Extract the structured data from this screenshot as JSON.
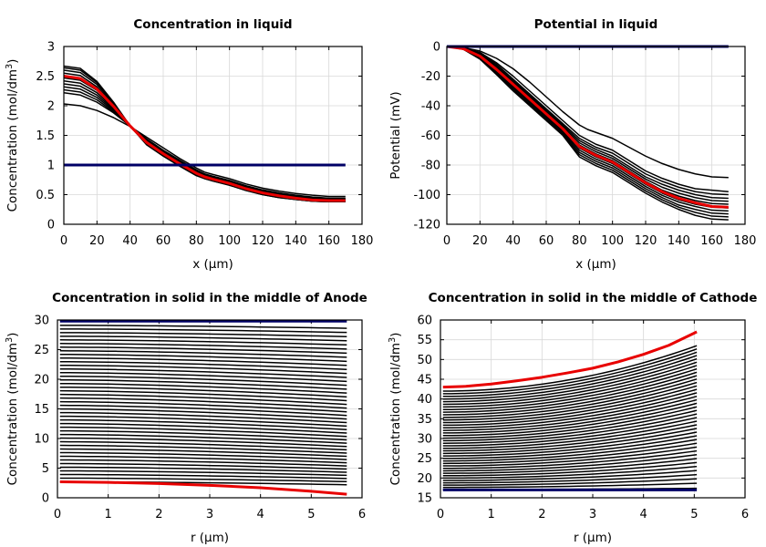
{
  "chart_data": [
    {
      "type": "line",
      "title": "Concentration in liquid",
      "xlabel": "x (µm)",
      "ylabel": "Concentration (mol/dm",
      "ylabel_sup": "3",
      "ylabel_end": ")",
      "xlim": [
        0,
        180
      ],
      "ylim": [
        0,
        3
      ],
      "xticks": [
        "0",
        "20",
        "40",
        "60",
        "80",
        "100",
        "120",
        "140",
        "160",
        "180"
      ],
      "yticks": [
        "0",
        "0.5",
        "1",
        "1.5",
        "2",
        "2.5",
        "3"
      ],
      "grid": true,
      "colors": {
        "first": "#000066",
        "last": "#e80000",
        "intermediate": "#000000"
      },
      "x": [
        0,
        10,
        20,
        30,
        40,
        50,
        60,
        70,
        80,
        85,
        90,
        100,
        110,
        120,
        130,
        140,
        150,
        160,
        170
      ],
      "series": [
        {
          "role": "first",
          "values": [
            1,
            1,
            1,
            1,
            1,
            1,
            1,
            1,
            1,
            1,
            1,
            1,
            1,
            1,
            1,
            1,
            1,
            1,
            1
          ]
        },
        {
          "role": "intermediate",
          "values": [
            2.03,
            2.0,
            1.92,
            1.8,
            1.65,
            1.47,
            1.29,
            1.11,
            0.95,
            0.88,
            0.84,
            0.77,
            0.68,
            0.61,
            0.56,
            0.52,
            0.49,
            0.47,
            0.47
          ]
        },
        {
          "role": "intermediate",
          "values": [
            2.22,
            2.18,
            2.06,
            1.88,
            1.66,
            1.44,
            1.25,
            1.08,
            0.92,
            0.85,
            0.81,
            0.74,
            0.65,
            0.58,
            0.53,
            0.49,
            0.46,
            0.44,
            0.44
          ]
        },
        {
          "role": "intermediate",
          "values": [
            2.27,
            2.23,
            2.1,
            1.9,
            1.66,
            1.43,
            1.24,
            1.07,
            0.91,
            0.84,
            0.8,
            0.73,
            0.64,
            0.57,
            0.52,
            0.48,
            0.45,
            0.43,
            0.43
          ]
        },
        {
          "role": "intermediate",
          "values": [
            2.32,
            2.28,
            2.14,
            1.92,
            1.66,
            1.42,
            1.23,
            1.06,
            0.9,
            0.83,
            0.79,
            0.72,
            0.63,
            0.56,
            0.51,
            0.47,
            0.44,
            0.42,
            0.42
          ]
        },
        {
          "role": "intermediate",
          "values": [
            2.37,
            2.33,
            2.18,
            1.94,
            1.66,
            1.41,
            1.22,
            1.05,
            0.89,
            0.82,
            0.78,
            0.71,
            0.62,
            0.55,
            0.5,
            0.46,
            0.43,
            0.41,
            0.41
          ]
        },
        {
          "role": "intermediate",
          "values": [
            2.42,
            2.38,
            2.22,
            1.96,
            1.66,
            1.4,
            1.21,
            1.04,
            0.88,
            0.81,
            0.77,
            0.7,
            0.61,
            0.54,
            0.49,
            0.45,
            0.42,
            0.4,
            0.4
          ]
        },
        {
          "role": "intermediate",
          "values": [
            2.47,
            2.43,
            2.26,
            1.98,
            1.66,
            1.39,
            1.2,
            1.03,
            0.87,
            0.8,
            0.76,
            0.69,
            0.6,
            0.53,
            0.48,
            0.44,
            0.41,
            0.39,
            0.39
          ]
        },
        {
          "role": "intermediate",
          "values": [
            2.55,
            2.51,
            2.32,
            2.01,
            1.66,
            1.37,
            1.18,
            1.01,
            0.85,
            0.79,
            0.75,
            0.68,
            0.59,
            0.52,
            0.47,
            0.43,
            0.4,
            0.38,
            0.38
          ]
        },
        {
          "role": "intermediate",
          "values": [
            2.6,
            2.56,
            2.36,
            2.03,
            1.66,
            1.36,
            1.17,
            1.0,
            0.84,
            0.78,
            0.74,
            0.67,
            0.58,
            0.51,
            0.46,
            0.42,
            0.39,
            0.38,
            0.38
          ]
        },
        {
          "role": "intermediate",
          "values": [
            2.64,
            2.6,
            2.39,
            2.05,
            1.66,
            1.35,
            1.16,
            0.99,
            0.83,
            0.77,
            0.73,
            0.66,
            0.57,
            0.5,
            0.45,
            0.42,
            0.39,
            0.38,
            0.38
          ]
        },
        {
          "role": "intermediate",
          "values": [
            2.67,
            2.63,
            2.41,
            2.06,
            1.66,
            1.34,
            1.15,
            0.98,
            0.82,
            0.77,
            0.73,
            0.66,
            0.57,
            0.5,
            0.45,
            0.42,
            0.39,
            0.38,
            0.38
          ]
        },
        {
          "role": "last",
          "values": [
            2.5,
            2.46,
            2.28,
            1.99,
            1.66,
            1.38,
            1.19,
            1.02,
            0.86,
            0.8,
            0.76,
            0.69,
            0.6,
            0.53,
            0.48,
            0.44,
            0.41,
            0.4,
            0.4
          ]
        }
      ]
    },
    {
      "type": "line",
      "title": "Potential in liquid",
      "xlabel": "x (µm)",
      "ylabel": "Potential (mV)",
      "ylabel_sup": "",
      "ylabel_end": "",
      "xlim": [
        0,
        180
      ],
      "ylim": [
        -120,
        0
      ],
      "xticks": [
        "0",
        "20",
        "40",
        "60",
        "80",
        "100",
        "120",
        "140",
        "160",
        "180"
      ],
      "yticks": [
        "-120",
        "-100",
        "-80",
        "-60",
        "-40",
        "-20",
        "0"
      ],
      "grid": true,
      "colors": {
        "first": "#000066",
        "last": "#e80000",
        "intermediate": "#000000"
      },
      "x": [
        0,
        10,
        20,
        30,
        40,
        50,
        60,
        70,
        80,
        85,
        90,
        100,
        110,
        120,
        130,
        140,
        150,
        160,
        170
      ],
      "series": [
        {
          "role": "first",
          "values": [
            0,
            0,
            0,
            0,
            0,
            0,
            0,
            0,
            0,
            0,
            0,
            0,
            0,
            0,
            0,
            0,
            0,
            0,
            0
          ]
        },
        {
          "role": "intermediate",
          "values": [
            0,
            -0.8,
            -3,
            -8,
            -15,
            -24,
            -34,
            -44,
            -53,
            -56,
            -58,
            -62,
            -68,
            -74,
            -79,
            -83,
            -86,
            -88,
            -88.5
          ]
        },
        {
          "role": "intermediate",
          "values": [
            0,
            -1,
            -4,
            -11,
            -20,
            -30,
            -40,
            -50,
            -60,
            -63,
            -66,
            -70,
            -77,
            -84,
            -89,
            -93,
            -96,
            -97,
            -98
          ]
        },
        {
          "role": "intermediate",
          "values": [
            0,
            -1.1,
            -4.5,
            -12,
            -22,
            -32,
            -42,
            -52,
            -62,
            -65,
            -68,
            -72,
            -79,
            -86,
            -91,
            -95,
            -98,
            -99.5,
            -100
          ]
        },
        {
          "role": "intermediate",
          "values": [
            0,
            -1.2,
            -5,
            -13,
            -23,
            -33,
            -43,
            -53,
            -63.5,
            -66.5,
            -69.5,
            -74,
            -81,
            -88,
            -93,
            -97,
            -100,
            -102,
            -102.5
          ]
        },
        {
          "role": "intermediate",
          "values": [
            0,
            -1.3,
            -5.5,
            -14,
            -24,
            -34,
            -44,
            -54,
            -65,
            -68,
            -71,
            -75.5,
            -82.5,
            -89.5,
            -95,
            -99,
            -102,
            -104,
            -104.5
          ]
        },
        {
          "role": "intermediate",
          "values": [
            0,
            -1.4,
            -6,
            -15,
            -25,
            -35,
            -45,
            -55,
            -66.5,
            -69.5,
            -72.5,
            -77,
            -84,
            -91,
            -97,
            -101,
            -104,
            -106,
            -106.5
          ]
        },
        {
          "role": "intermediate",
          "values": [
            0,
            -1.5,
            -6.5,
            -16,
            -26,
            -36,
            -46,
            -56,
            -68.5,
            -71.5,
            -74.5,
            -79,
            -86,
            -93,
            -99,
            -103.5,
            -106.5,
            -108.5,
            -109
          ]
        },
        {
          "role": "intermediate",
          "values": [
            0,
            -1.6,
            -7,
            -16.5,
            -27,
            -37,
            -47,
            -57,
            -70,
            -73,
            -76,
            -80.5,
            -87.5,
            -94.5,
            -100.5,
            -105,
            -108,
            -110.5,
            -111
          ]
        },
        {
          "role": "intermediate",
          "values": [
            0,
            -1.7,
            -7.5,
            -17,
            -28,
            -38,
            -48,
            -58,
            -71.5,
            -74.5,
            -77.5,
            -82,
            -89,
            -96,
            -102,
            -107,
            -110,
            -112.5,
            -113
          ]
        },
        {
          "role": "intermediate",
          "values": [
            0,
            -1.8,
            -8,
            -18,
            -29,
            -39,
            -49,
            -59,
            -73,
            -76,
            -79,
            -83.5,
            -90.5,
            -97.5,
            -103.5,
            -108.5,
            -112,
            -114.5,
            -115
          ]
        },
        {
          "role": "intermediate",
          "values": [
            0,
            -1.9,
            -8.5,
            -19,
            -30,
            -40,
            -50,
            -60,
            -74.5,
            -77.5,
            -80.5,
            -85,
            -92,
            -99,
            -105,
            -110,
            -114,
            -116.5,
            -117
          ]
        },
        {
          "role": "last",
          "values": [
            0,
            -1.5,
            -6.5,
            -15.5,
            -25.5,
            -35.5,
            -45.5,
            -55.5,
            -67.5,
            -70.5,
            -73.5,
            -78,
            -85,
            -92,
            -98,
            -102.5,
            -105.5,
            -108,
            -108.5
          ]
        }
      ]
    },
    {
      "type": "line",
      "title": "Concentration in solid in the middle of Anode",
      "xlabel": "r (µm)",
      "ylabel": "Concentration (mol/dm",
      "ylabel_sup": "3",
      "ylabel_end": ")",
      "xlim": [
        0,
        6
      ],
      "ylim": [
        0,
        30
      ],
      "xticks": [
        "0",
        "1",
        "2",
        "3",
        "4",
        "5",
        "6"
      ],
      "yticks": [
        "0",
        "5",
        "10",
        "15",
        "20",
        "25",
        "30"
      ],
      "grid": true,
      "colors": {
        "first": "#000066",
        "last": "#e80000",
        "intermediate": "#000000"
      },
      "family": {
        "kind": "anode",
        "count": 44,
        "c_top": 29.1,
        "c_bottom": 2.7,
        "r_start": 0.05,
        "r_end": 5.7
      },
      "first_series": {
        "r": [
          0.05,
          5.7
        ],
        "c": [
          29.8,
          29.8
        ]
      },
      "last_series": {
        "r": [
          0.05,
          1,
          2,
          3,
          4,
          5,
          5.7
        ],
        "c": [
          2.7,
          2.6,
          2.4,
          2.1,
          1.7,
          1.1,
          0.6
        ]
      }
    },
    {
      "type": "line",
      "title": "Concentration in solid in the middle of Cathode",
      "xlabel": "r (µm)",
      "ylabel": "Concentration (mol/dm",
      "ylabel_sup": "3",
      "ylabel_end": ")",
      "xlim": [
        0,
        6
      ],
      "ylim": [
        15,
        60
      ],
      "xticks": [
        "0",
        "1",
        "2",
        "3",
        "4",
        "5",
        "6"
      ],
      "yticks": [
        "15",
        "20",
        "25",
        "30",
        "35",
        "40",
        "45",
        "50",
        "55",
        "60"
      ],
      "grid": true,
      "colors": {
        "first": "#000066",
        "last": "#e80000",
        "intermediate": "#000000"
      },
      "family": {
        "kind": "cathode",
        "count": 40,
        "c_low": 17.1,
        "c_high": 42.0,
        "r_start": 0.05,
        "r_end": 5.05
      },
      "first_series": {
        "r": [
          0.05,
          5.05
        ],
        "c": [
          17.0,
          17.0
        ]
      },
      "last_series": {
        "r": [
          0.05,
          0.5,
          1,
          1.5,
          2,
          2.5,
          3,
          3.5,
          4,
          4.5,
          5.05
        ],
        "c": [
          43.0,
          43.2,
          43.8,
          44.6,
          45.5,
          46.6,
          47.8,
          49.4,
          51.3,
          53.6,
          57.0
        ]
      }
    }
  ]
}
